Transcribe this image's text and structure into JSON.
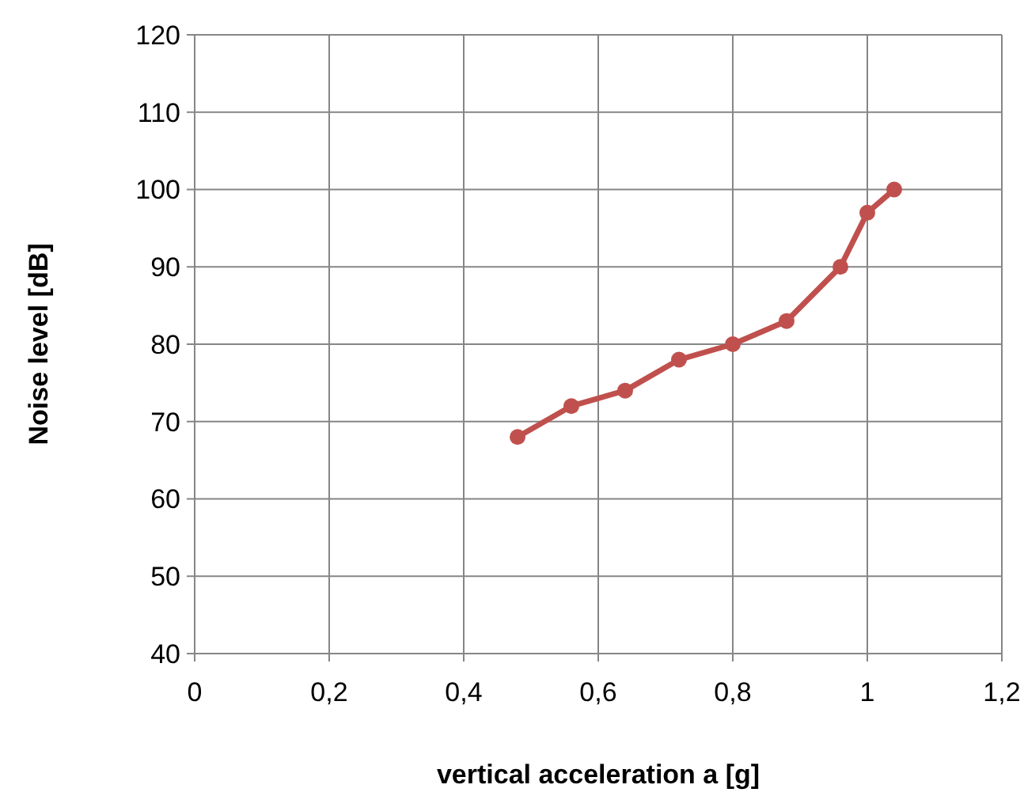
{
  "chart_data": {
    "type": "line",
    "xlabel": "vertical acceleration a [g]",
    "ylabel": "Noise level [dB]",
    "x": [
      0.48,
      0.56,
      0.64,
      0.72,
      0.8,
      0.88,
      0.96,
      1.0,
      1.04
    ],
    "series": [
      {
        "color": "#c0504d",
        "values": [
          68,
          72,
          74,
          78,
          80,
          83,
          90,
          97,
          100
        ]
      }
    ],
    "xlim": [
      0,
      1.2
    ],
    "xticks": [
      0,
      {
        "value": 0.2,
        "label": "0,2"
      },
      {
        "value": 0.4,
        "label": "0,4"
      },
      {
        "value": 0.6,
        "label": "0,6"
      },
      {
        "value": 0.8,
        "label": "0,8"
      },
      1,
      {
        "value": 1.2,
        "label": "1,2"
      }
    ],
    "ylim": [
      40,
      120
    ],
    "yticks": [
      40,
      50,
      60,
      70,
      80,
      90,
      100,
      110,
      120
    ],
    "grid": true,
    "marker": "circle",
    "line_style": "solid"
  }
}
